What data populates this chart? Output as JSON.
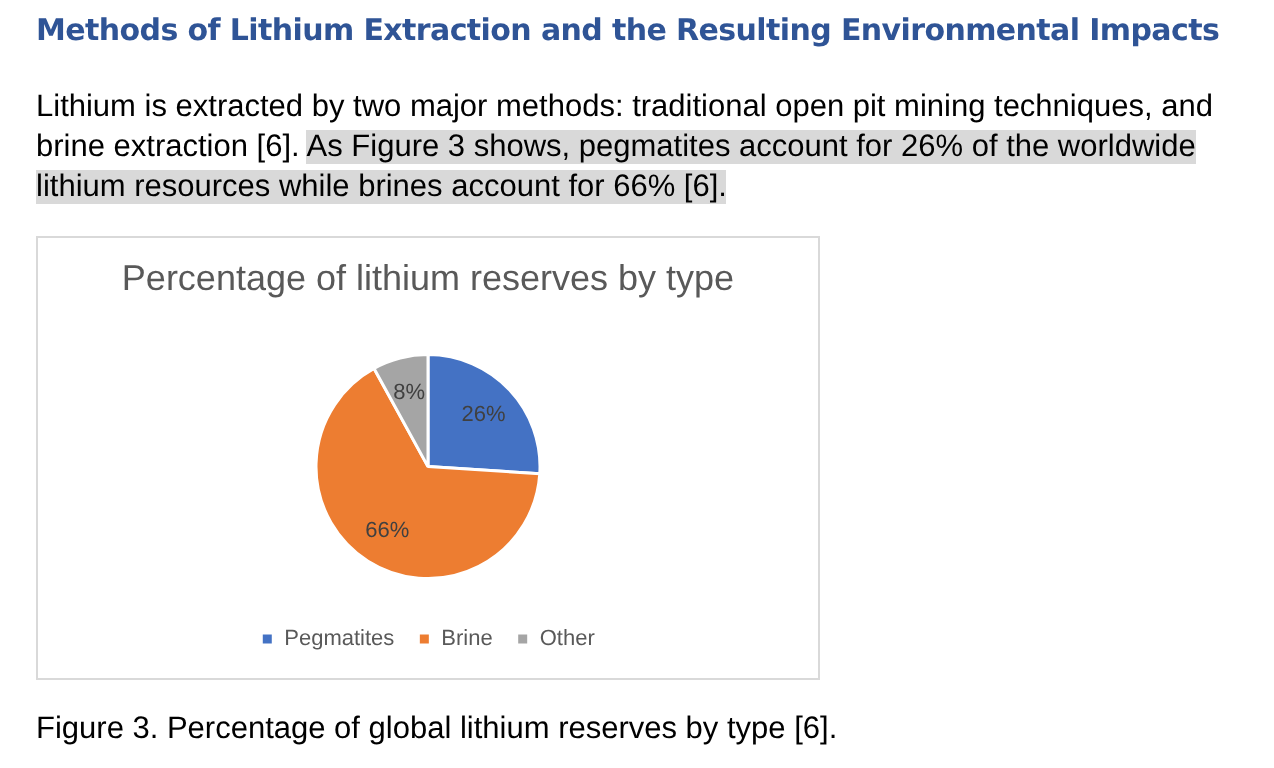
{
  "chart_data": {
    "type": "pie",
    "title": "Percentage of lithium reserves by type",
    "categories": [
      "Pegmatites",
      "Brine",
      "Other"
    ],
    "values": [
      26,
      66,
      8
    ],
    "colors": [
      "#4472c4",
      "#ed7d31",
      "#a5a5a5"
    ],
    "value_labels": [
      "26%",
      "66%",
      "8%"
    ],
    "legend": "bottom",
    "annotations": [
      "Methods of Lithium Extraction and the Resulting Environmental Impacts",
      "Lithium is extracted by two major methods: traditional open pit mining techniques, and brine extraction [6].",
      "As Figure 3 shows, pegmatites account for 26% of the worldwide lithium resources while brines account for 66% [6].",
      "Figure 3. Percentage of global lithium reserves by type [6]."
    ]
  }
}
